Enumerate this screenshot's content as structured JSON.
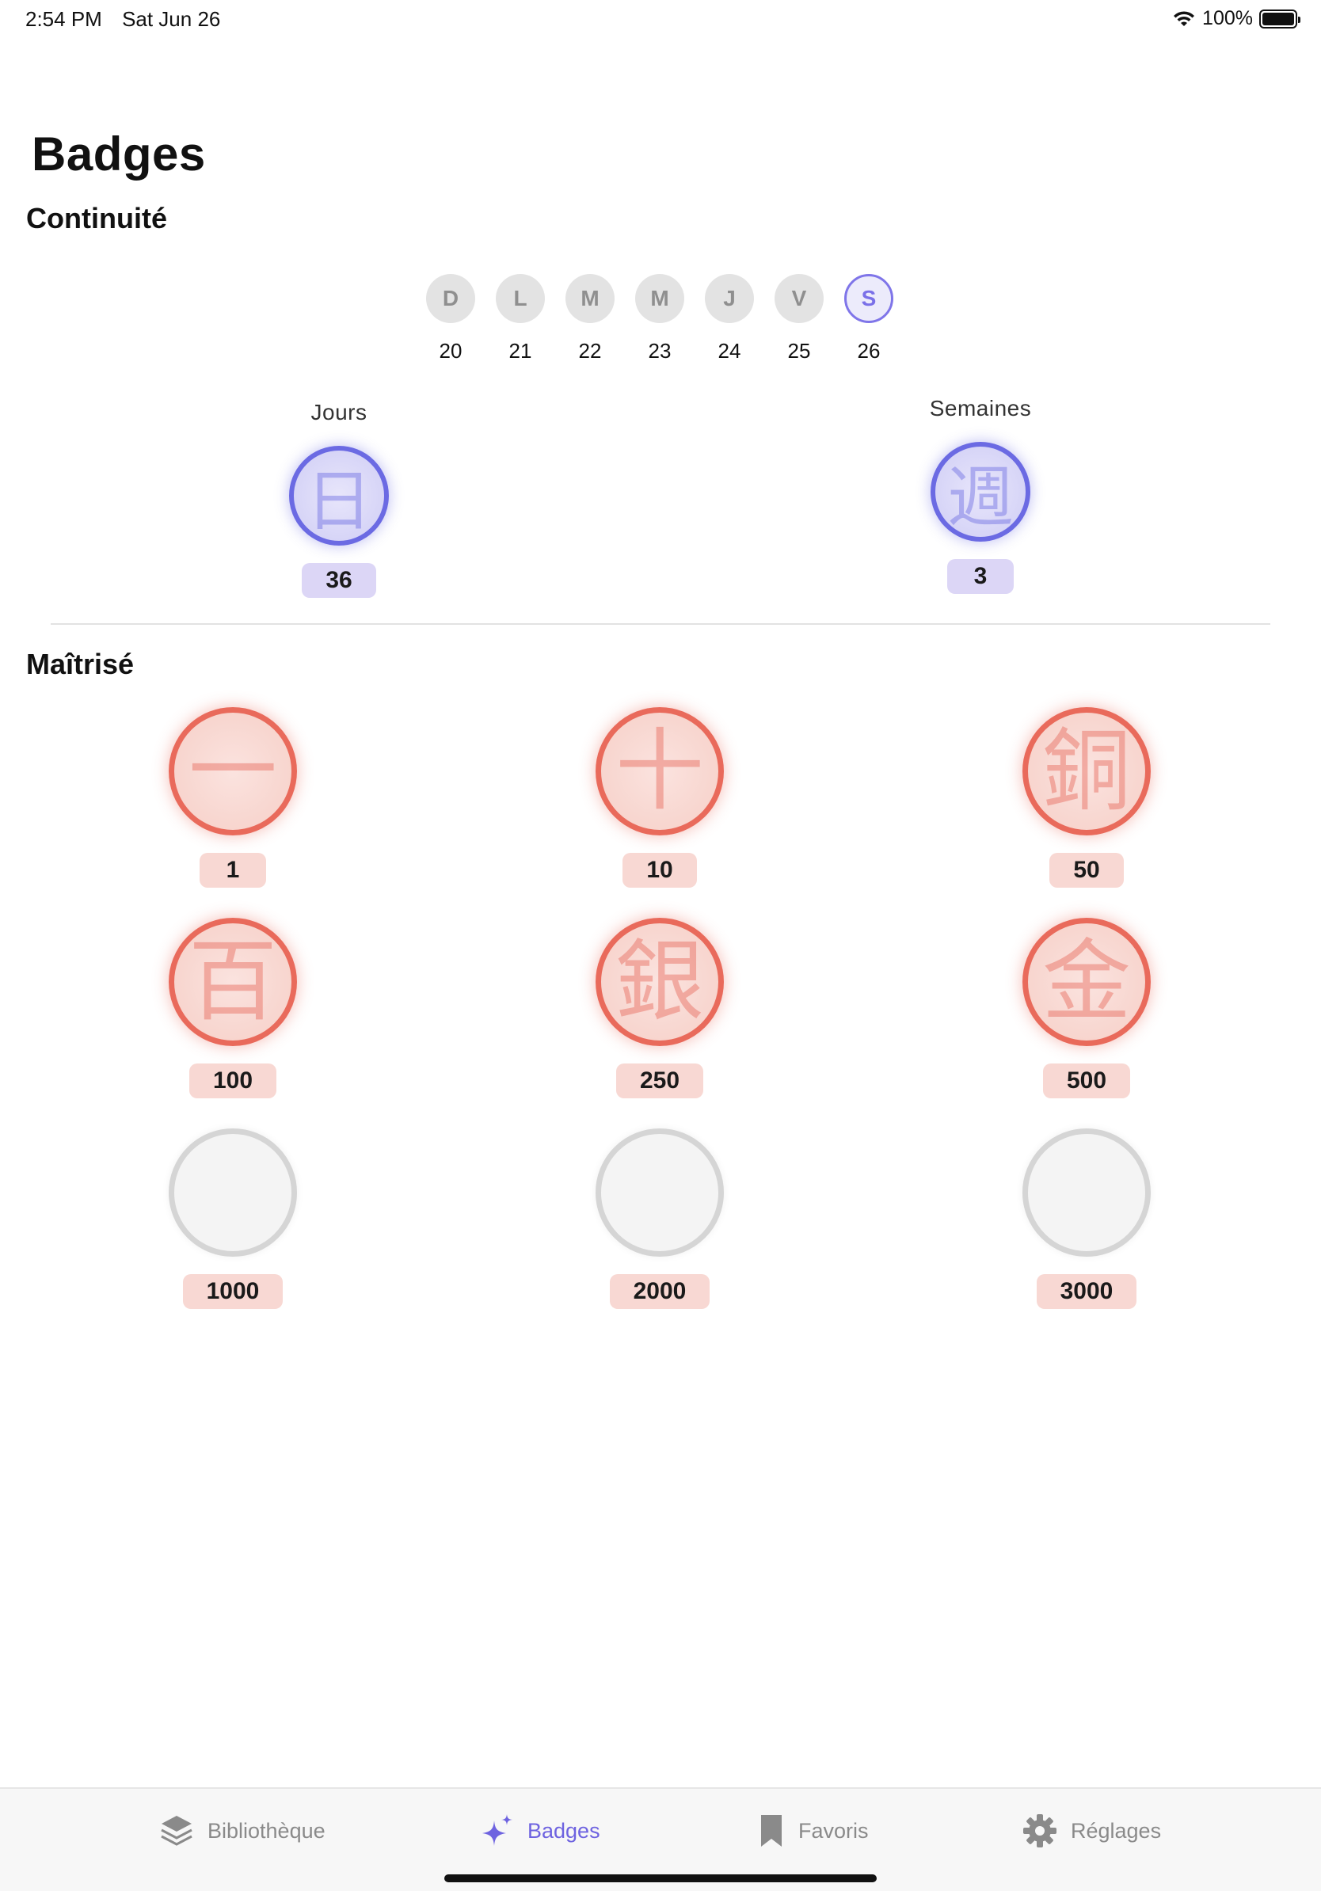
{
  "status_bar": {
    "time": "2:54 PM",
    "date": "Sat Jun 26",
    "battery": "100%"
  },
  "page_title": "Badges",
  "continuity": {
    "title": "Continuité",
    "days": [
      {
        "letter": "D",
        "num": "20",
        "active": false
      },
      {
        "letter": "L",
        "num": "21",
        "active": false
      },
      {
        "letter": "M",
        "num": "22",
        "active": false
      },
      {
        "letter": "M",
        "num": "23",
        "active": false
      },
      {
        "letter": "J",
        "num": "24",
        "active": false
      },
      {
        "letter": "V",
        "num": "25",
        "active": false
      },
      {
        "letter": "S",
        "num": "26",
        "active": true
      }
    ],
    "streak_days": {
      "label": "Jours",
      "glyph": "日",
      "value": "36"
    },
    "streak_weeks": {
      "label": "Semaines",
      "glyph": "週",
      "value": "3"
    }
  },
  "mastery": {
    "title": "Maîtrisé",
    "badges": [
      {
        "glyph": "一",
        "value": "1",
        "earned": true
      },
      {
        "glyph": "十",
        "value": "10",
        "earned": true
      },
      {
        "glyph": "銅",
        "value": "50",
        "earned": true
      },
      {
        "glyph": "百",
        "value": "100",
        "earned": true
      },
      {
        "glyph": "銀",
        "value": "250",
        "earned": true
      },
      {
        "glyph": "金",
        "value": "500",
        "earned": true
      },
      {
        "glyph": "",
        "value": "1000",
        "earned": false
      },
      {
        "glyph": "",
        "value": "2000",
        "earned": false
      },
      {
        "glyph": "",
        "value": "3000",
        "earned": false
      }
    ]
  },
  "tabbar": {
    "library": "Bibliothèque",
    "badges": "Badges",
    "favorites": "Favoris",
    "settings": "Réglages",
    "active": "badges"
  },
  "colors": {
    "accent": "#6e63e0",
    "medal_red": "#e96a5b",
    "medal_blue": "#6b6ae3"
  }
}
